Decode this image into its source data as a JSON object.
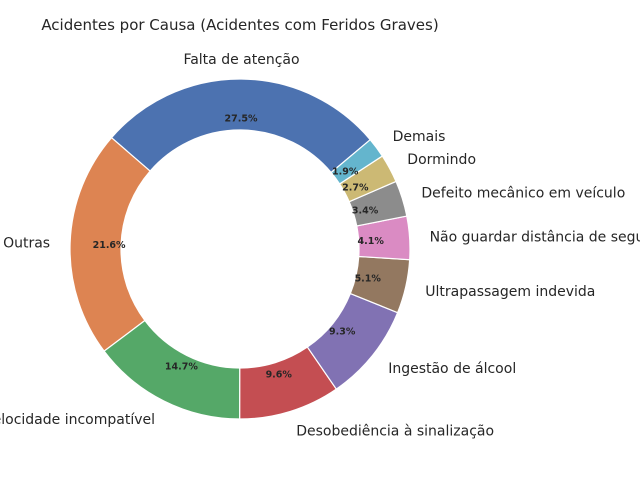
{
  "chart_data": {
    "type": "pie",
    "style": "donut",
    "title": "Acidentes por Causa (Acidentes com Feridos Graves)",
    "categories": [
      "Falta de atenção",
      "Outras",
      "Velocidade incompatível",
      "Desobediência à sinalização",
      "Ingestão de álcool",
      "Ultrapassagem indevida",
      "Não guardar distância de segurança",
      "Defeito mecânico em veículo",
      "Dormindo",
      "Demais"
    ],
    "values": [
      27.5,
      21.6,
      14.7,
      9.6,
      9.3,
      5.1,
      4.1,
      3.4,
      2.7,
      1.9
    ],
    "value_labels": [
      "27.5%",
      "21.6%",
      "14.7%",
      "9.6%",
      "9.3%",
      "5.1%",
      "4.1%",
      "3.4%",
      "2.7%",
      "1.9%"
    ],
    "colors": [
      "#4c72b0",
      "#dd8452",
      "#55a868",
      "#c44e52",
      "#8172b3",
      "#937860",
      "#da8bc3",
      "#8c8c8c",
      "#ccb974",
      "#64b5cd"
    ],
    "start_angle_deg": 40,
    "direction": "counterclockwise",
    "legend": "none"
  }
}
